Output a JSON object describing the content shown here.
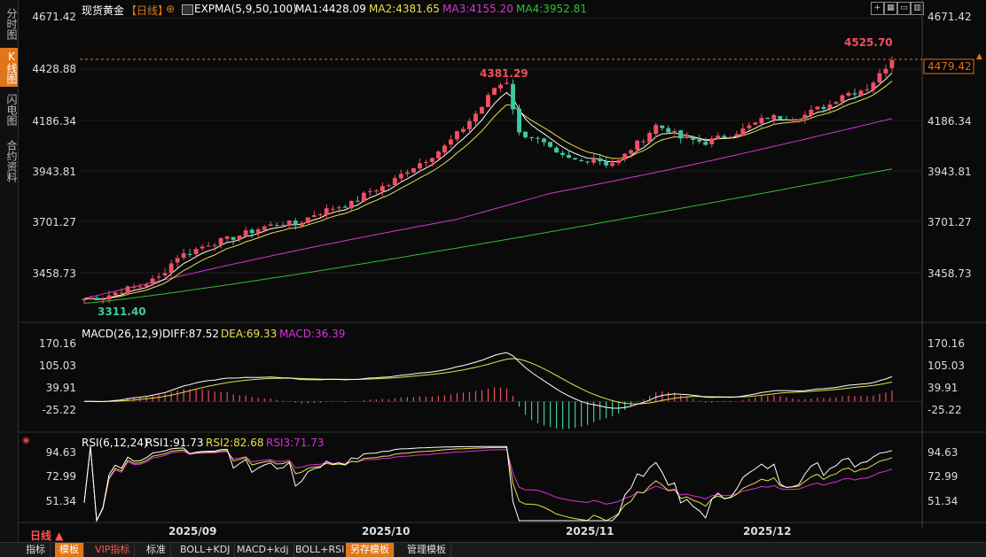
{
  "sidebar": {
    "items": [
      {
        "label": "分时图",
        "active": false
      },
      {
        "label": "K线图",
        "active": true
      },
      {
        "label": "闪电图",
        "active": false
      },
      {
        "label": "合约资料",
        "active": false
      }
    ]
  },
  "header": {
    "instrument": "现货黄金",
    "period_tag": "【日线】",
    "plus_symbol": "⊕",
    "ema_label": "EXPMA(5,9,50,100)",
    "ma1": "MA1:4428.09",
    "ma2": "MA2:4381.65",
    "ma3": "MA3:4155.20",
    "ma4": "MA4:3952.81"
  },
  "macd_header": {
    "label": "MACD(26,12,9)",
    "diff": "DIFF:87.52",
    "dea": "DEA:69.33",
    "macd": "MACD:36.39"
  },
  "rsi_header": {
    "label": "RSI(6,12,24)",
    "rsi1": "RSI1:91.73",
    "rsi2": "RSI2:82.68",
    "rsi3": "RSI3:71.73"
  },
  "price_axis": [
    "4671.42",
    "4428.88",
    "4186.34",
    "3943.81",
    "3701.27",
    "3458.73"
  ],
  "macd_axis": [
    "170.16",
    "105.03",
    "39.91",
    "-25.22"
  ],
  "rsi_axis": [
    "94.63",
    "72.99",
    "51.34"
  ],
  "x_axis": [
    "2025/09",
    "2025/10",
    "2025/11",
    "2025/12"
  ],
  "current_price": "4479.42",
  "period_label": "日线 ▲",
  "toolbar": {
    "items": [
      "指标",
      "模板",
      "VIP指标",
      "标准",
      "BOLL+KDJ",
      "MACD+kdj",
      "BOLL+RSI",
      "另存模板",
      "管理模板"
    ]
  },
  "colors": {
    "up": "#f04f5f",
    "down": "#3fc7a1",
    "ma1": "#ffffff",
    "ma2": "#e8e04a",
    "ma3": "#d534d5",
    "ma4": "#2fc02f",
    "accent": "#e0761a"
  },
  "chart_data": [
    {
      "type": "candlestick",
      "title": "现货黄金【日线】",
      "ylim": [
        3311.4,
        4671.42
      ],
      "ref_high": "4525.70",
      "ref_mid_high": "4381.29",
      "ref_low": "3311.40",
      "ma_series": [
        "MA1",
        "MA2",
        "MA3",
        "MA4"
      ],
      "close_anchors": [
        [
          0,
          3340
        ],
        [
          3,
          3345
        ],
        [
          6,
          3380
        ],
        [
          9,
          3400
        ],
        [
          12,
          3440
        ],
        [
          15,
          3540
        ],
        [
          17,
          3560
        ],
        [
          20,
          3600
        ],
        [
          23,
          3620
        ],
        [
          26,
          3650
        ],
        [
          29,
          3680
        ],
        [
          32,
          3700
        ],
        [
          34,
          3690
        ],
        [
          37,
          3740
        ],
        [
          40,
          3770
        ],
        [
          43,
          3790
        ],
        [
          46,
          3850
        ],
        [
          49,
          3880
        ],
        [
          52,
          3950
        ],
        [
          55,
          4000
        ],
        [
          58,
          4060
        ],
        [
          61,
          4150
        ],
        [
          64,
          4250
        ],
        [
          66,
          4340
        ],
        [
          68,
          4370
        ],
        [
          70,
          4120
        ],
        [
          72,
          4110
        ],
        [
          74,
          4070
        ],
        [
          76,
          4020
        ],
        [
          78,
          4000
        ],
        [
          80,
          3990
        ],
        [
          82,
          4010
        ],
        [
          84,
          3980
        ],
        [
          86,
          3990
        ],
        [
          88,
          4050
        ],
        [
          90,
          4100
        ],
        [
          92,
          4160
        ],
        [
          94,
          4140
        ],
        [
          96,
          4100
        ],
        [
          98,
          4090
        ],
        [
          100,
          4080
        ],
        [
          102,
          4100
        ],
        [
          104,
          4120
        ],
        [
          106,
          4140
        ],
        [
          108,
          4170
        ],
        [
          110,
          4200
        ],
        [
          112,
          4200
        ],
        [
          114,
          4200
        ],
        [
          116,
          4210
        ],
        [
          118,
          4240
        ],
        [
          120,
          4260
        ],
        [
          122,
          4310
        ],
        [
          124,
          4320
        ],
        [
          126,
          4340
        ],
        [
          128,
          4400
        ],
        [
          130,
          4480
        ]
      ]
    },
    {
      "type": "macd",
      "ylim": [
        -80,
        180
      ],
      "diff_last": 87.52,
      "dea_last": 69.33,
      "macd_last": 36.39
    },
    {
      "type": "rsi",
      "ylim": [
        40,
        100
      ],
      "rsi1_last": 91.73,
      "rsi2_last": 82.68,
      "rsi3_last": 71.73
    }
  ]
}
